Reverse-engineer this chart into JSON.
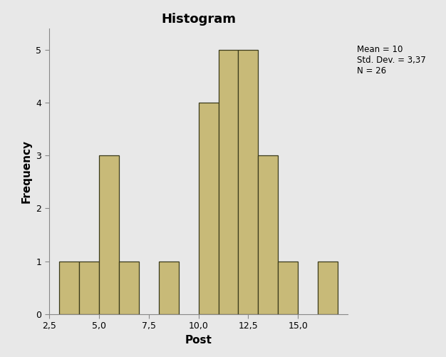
{
  "title": "Histogram",
  "xlabel": "Post",
  "ylabel": "Frequency",
  "bar_color": "#C8BA78",
  "bar_edge_color": "#3a3a1a",
  "background_color": "#E8E8E8",
  "fig_background_color": "#E8E8E8",
  "stats_text": "Mean = 10\nStd. Dev. = 3,37\nN = 26",
  "bar_lefts": [
    3,
    4,
    5,
    6,
    8,
    10,
    11,
    12,
    13,
    14,
    16
  ],
  "bar_heights": [
    1,
    1,
    3,
    1,
    1,
    4,
    5,
    5,
    3,
    1,
    1
  ],
  "bar_width": 1,
  "ylim": [
    0,
    5.4
  ],
  "yticks": [
    0,
    1,
    2,
    3,
    4,
    5
  ],
  "xlim": [
    2.5,
    17.5
  ],
  "xticks": [
    2.5,
    5.0,
    7.5,
    10.0,
    12.5,
    15.0
  ],
  "xtick_labels": [
    "2,5",
    "5,0",
    "7,5",
    "10,0",
    "12,5",
    "15,0"
  ],
  "title_fontsize": 13,
  "axis_label_fontsize": 11,
  "tick_fontsize": 9,
  "stats_fontsize": 8.5
}
